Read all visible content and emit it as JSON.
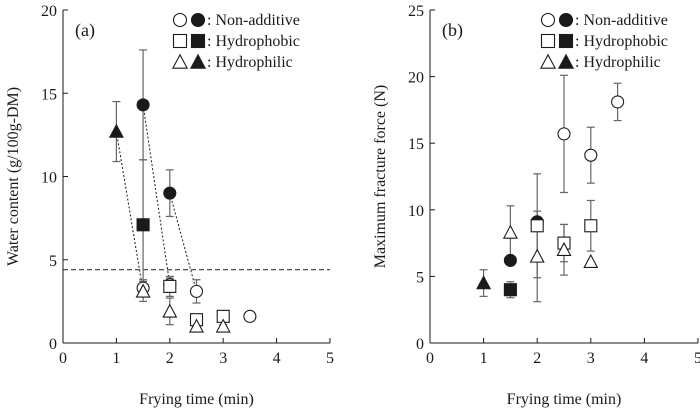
{
  "chart_data": [
    {
      "type": "scatter",
      "panel_label": "(a)",
      "xlabel": "Frying time (min)",
      "ylabel": "Water content (g/100g-DM)",
      "xlim": [
        0,
        5
      ],
      "ylim": [
        0,
        20
      ],
      "xticks": [
        "0",
        "1",
        "2",
        "3",
        "4",
        "5"
      ],
      "yticks": [
        "0",
        "5",
        "10",
        "15",
        "20"
      ],
      "reference_line_y": 4.4,
      "legend": [
        {
          "label": ": Non-additive",
          "shape": "circle"
        },
        {
          "label": ": Hydrophobic",
          "shape": "square"
        },
        {
          "label": ": Hydrophilic",
          "shape": "triangle"
        }
      ],
      "series": [
        {
          "name": "Non-additive (filled)",
          "shape": "circle",
          "filled": true,
          "points": [
            {
              "x": 1.5,
              "y": 14.3,
              "err": 3.3
            },
            {
              "x": 2.0,
              "y": 9.0,
              "err": 1.4
            }
          ]
        },
        {
          "name": "Non-additive (open)",
          "shape": "circle",
          "filled": false,
          "points": [
            {
              "x": 1.5,
              "y": 3.3,
              "err": 0.5
            },
            {
              "x": 2.0,
              "y": 3.5,
              "err": 0.4
            },
            {
              "x": 2.5,
              "y": 3.1,
              "err": 0.7
            },
            {
              "x": 3.5,
              "y": 1.6,
              "err": 0
            }
          ]
        },
        {
          "name": "Hydrophobic (filled)",
          "shape": "square",
          "filled": true,
          "points": [
            {
              "x": 1.5,
              "y": 7.1,
              "err": 3.9
            }
          ]
        },
        {
          "name": "Hydrophobic (open)",
          "shape": "square",
          "filled": false,
          "points": [
            {
              "x": 2.0,
              "y": 3.4,
              "err": 0.6
            },
            {
              "x": 2.5,
              "y": 1.4,
              "err": 0.3
            },
            {
              "x": 3.0,
              "y": 1.6,
              "err": 0.2
            }
          ]
        },
        {
          "name": "Hydrophilic (filled)",
          "shape": "triangle",
          "filled": true,
          "points": [
            {
              "x": 1.0,
              "y": 12.7,
              "err": 1.8
            }
          ]
        },
        {
          "name": "Hydrophilic (open)",
          "shape": "triangle",
          "filled": false,
          "points": [
            {
              "x": 1.5,
              "y": 3.1,
              "err": 0.6
            },
            {
              "x": 2.0,
              "y": 1.9,
              "err": 0.8
            },
            {
              "x": 2.5,
              "y": 1.0,
              "err": 0.2
            },
            {
              "x": 3.0,
              "y": 1.0,
              "err": 0.1
            }
          ]
        }
      ],
      "connectors": [
        {
          "from": [
            1.0,
            12.7
          ],
          "to": [
            1.5,
            3.1
          ]
        },
        {
          "from": [
            1.5,
            14.3
          ],
          "to": [
            2.0,
            3.5
          ]
        },
        {
          "from": [
            2.0,
            9.0
          ],
          "to": [
            2.5,
            3.1
          ]
        }
      ]
    },
    {
      "type": "scatter",
      "panel_label": "(b)",
      "xlabel": "Frying time (min)",
      "ylabel": "Maximum fracture force (N)",
      "xlim": [
        0,
        5
      ],
      "ylim": [
        0,
        25
      ],
      "xticks": [
        "0",
        "1",
        "2",
        "3",
        "4",
        "5"
      ],
      "yticks": [
        "0",
        "5",
        "10",
        "15",
        "20",
        "25"
      ],
      "legend": [
        {
          "label": ": Non-additive",
          "shape": "circle"
        },
        {
          "label": ": Hydrophobic",
          "shape": "square"
        },
        {
          "label": ": Hydrophilic",
          "shape": "triangle"
        }
      ],
      "series": [
        {
          "name": "Non-additive (filled)",
          "shape": "circle",
          "filled": true,
          "points": [
            {
              "x": 1.5,
              "y": 6.2,
              "err": 0
            },
            {
              "x": 2.0,
              "y": 9.1,
              "err": 0
            }
          ]
        },
        {
          "name": "Non-additive (open)",
          "shape": "circle",
          "filled": false,
          "points": [
            {
              "x": 2.5,
              "y": 15.7,
              "err": 4.4
            },
            {
              "x": 3.0,
              "y": 14.1,
              "err": 2.1
            },
            {
              "x": 3.5,
              "y": 18.1,
              "err": 1.4
            }
          ]
        },
        {
          "name": "Hydrophobic (filled)",
          "shape": "square",
          "filled": true,
          "points": [
            {
              "x": 1.5,
              "y": 4.0,
              "err": 0.6
            }
          ]
        },
        {
          "name": "Hydrophobic (open)",
          "shape": "square",
          "filled": false,
          "points": [
            {
              "x": 2.0,
              "y": 8.8,
              "err": 3.9
            },
            {
              "x": 2.5,
              "y": 7.5,
              "err": 1.4
            },
            {
              "x": 3.0,
              "y": 8.8,
              "err": 1.9
            }
          ]
        },
        {
          "name": "Hydrophilic (filled)",
          "shape": "triangle",
          "filled": true,
          "points": [
            {
              "x": 1.0,
              "y": 4.5,
              "err": 1.0
            }
          ]
        },
        {
          "name": "Hydrophilic (open)",
          "shape": "triangle",
          "filled": false,
          "points": [
            {
              "x": 1.5,
              "y": 8.3,
              "err": 2.0
            },
            {
              "x": 2.0,
              "y": 6.5,
              "err": 3.4
            },
            {
              "x": 2.5,
              "y": 7.0,
              "err": 1.9
            },
            {
              "x": 3.0,
              "y": 6.1,
              "err": 0
            }
          ]
        }
      ],
      "connectors": []
    }
  ]
}
